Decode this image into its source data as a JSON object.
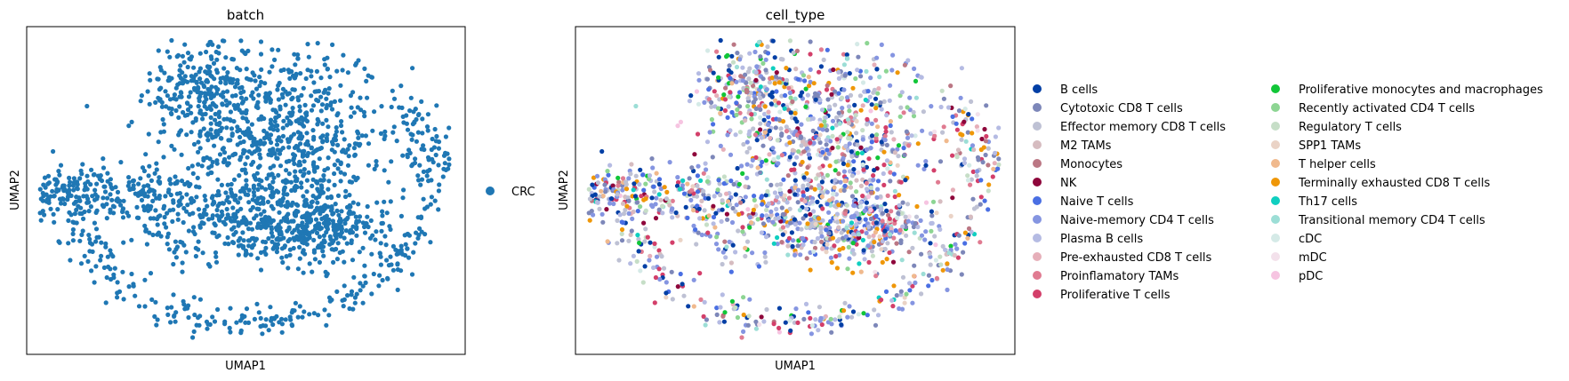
{
  "chart_data": [
    {
      "type": "scatter",
      "title": "batch",
      "xlabel": "UMAP1",
      "ylabel": "UMAP2",
      "grid": false,
      "legend_placement": "right-outside",
      "legend": [
        {
          "name": "CRC",
          "color": "#1f77b4"
        }
      ],
      "point_count_approx": 1900
    },
    {
      "type": "scatter",
      "title": "cell_type",
      "xlabel": "UMAP1",
      "ylabel": "UMAP2",
      "grid": false,
      "legend_placement": "right-outside",
      "legend": [
        {
          "name": "B cells",
          "color": "#023fa5"
        },
        {
          "name": "Cytotoxic CD8 T cells",
          "color": "#7d87b9"
        },
        {
          "name": "Effector memory CD8 T cells",
          "color": "#bec1d4"
        },
        {
          "name": "M2 TAMs",
          "color": "#d6bcc0"
        },
        {
          "name": "Monocytes",
          "color": "#bb7784"
        },
        {
          "name": "NK",
          "color": "#8e063b"
        },
        {
          "name": "Naive T cells",
          "color": "#4a6fe3"
        },
        {
          "name": "Naive-memory CD4 T cells",
          "color": "#8595e1"
        },
        {
          "name": "Plasma B cells",
          "color": "#b5bbe3"
        },
        {
          "name": "Pre-exhausted CD8 T cells",
          "color": "#e6afb9"
        },
        {
          "name": "Proinflamatory TAMs",
          "color": "#e07b91"
        },
        {
          "name": "Proliferative T cells",
          "color": "#d33f6a"
        },
        {
          "name": "Proliferative monocytes and macrophages",
          "color": "#11c638"
        },
        {
          "name": "Recently activated CD4 T cells",
          "color": "#8dd593"
        },
        {
          "name": "Regulatory T cells",
          "color": "#c6dec7"
        },
        {
          "name": "SPP1 TAMs",
          "color": "#ead3c6"
        },
        {
          "name": "T helper cells",
          "color": "#f0b98d"
        },
        {
          "name": "Terminally exhausted CD8 T cells",
          "color": "#ef9708"
        },
        {
          "name": "Th17 cells",
          "color": "#0fcfc0"
        },
        {
          "name": "Transitional memory CD4 T cells",
          "color": "#9cded6"
        },
        {
          "name": "cDC",
          "color": "#d5eae7"
        },
        {
          "name": "mDC",
          "color": "#f3e1eb"
        },
        {
          "name": "pDC",
          "color": "#f6c4e1"
        }
      ],
      "point_count_approx": 1900
    }
  ]
}
